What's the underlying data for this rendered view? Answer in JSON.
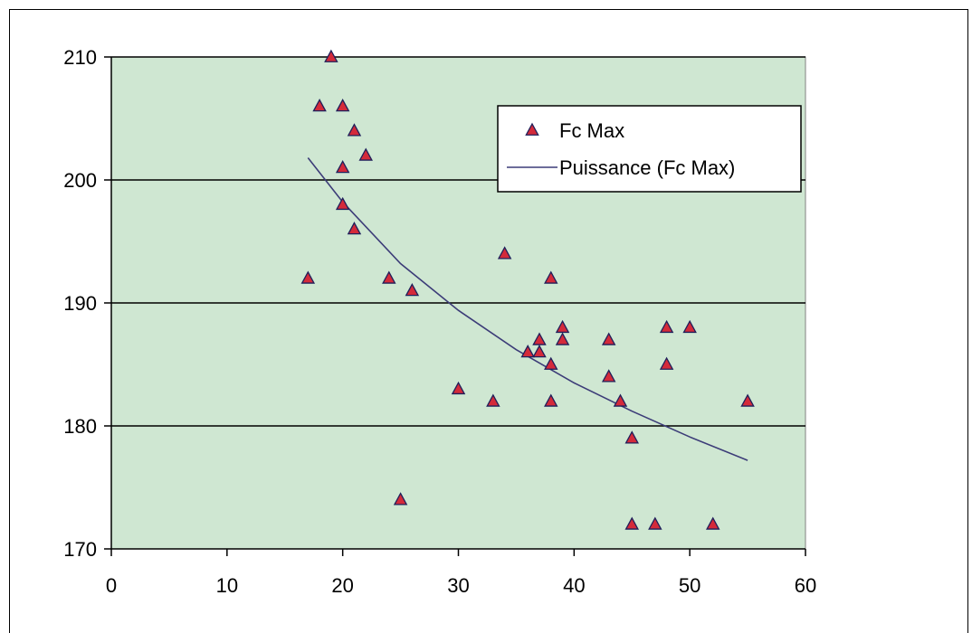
{
  "chart_data": {
    "type": "scatter",
    "title": "",
    "xlabel": "",
    "ylabel": "",
    "xlim": [
      0,
      60
    ],
    "ylim": [
      170,
      210
    ],
    "xticks": [
      0,
      10,
      20,
      30,
      40,
      50,
      60
    ],
    "yticks": [
      170,
      180,
      190,
      200,
      210
    ],
    "grid": "horizontal major gridlines",
    "legend_position": "top-right",
    "colors": {
      "plot_bg": "#cfe7d2",
      "marker_fill": "#d42a3a",
      "marker_stroke": "#1f1f5a",
      "trend_line": "#3c3c78"
    },
    "series": [
      {
        "name": "Fc Max",
        "kind": "points",
        "points": [
          [
            17,
            192
          ],
          [
            18,
            206
          ],
          [
            19,
            210
          ],
          [
            20,
            206
          ],
          [
            20,
            201
          ],
          [
            20,
            198
          ],
          [
            21,
            204
          ],
          [
            21,
            196
          ],
          [
            22,
            202
          ],
          [
            24,
            192
          ],
          [
            25,
            174
          ],
          [
            26,
            191
          ],
          [
            30,
            183
          ],
          [
            33,
            182
          ],
          [
            34,
            194
          ],
          [
            36,
            186
          ],
          [
            37,
            187
          ],
          [
            37,
            186
          ],
          [
            38,
            192
          ],
          [
            38,
            185
          ],
          [
            38,
            182
          ],
          [
            39,
            188
          ],
          [
            39,
            187
          ],
          [
            43,
            187
          ],
          [
            43,
            184
          ],
          [
            44,
            182
          ],
          [
            45,
            179
          ],
          [
            45,
            172
          ],
          [
            47,
            172
          ],
          [
            48,
            188
          ],
          [
            48,
            185
          ],
          [
            50,
            188
          ],
          [
            52,
            172
          ],
          [
            55,
            182
          ]
        ]
      },
      {
        "name": "Puissance (Fc Max)",
        "kind": "trendline",
        "points": [
          [
            17,
            201.8
          ],
          [
            20,
            198.2
          ],
          [
            25,
            193.2
          ],
          [
            30,
            189.4
          ],
          [
            35,
            186.2
          ],
          [
            40,
            183.5
          ],
          [
            45,
            181.2
          ],
          [
            50,
            179.1
          ],
          [
            55,
            177.2
          ]
        ]
      }
    ]
  }
}
